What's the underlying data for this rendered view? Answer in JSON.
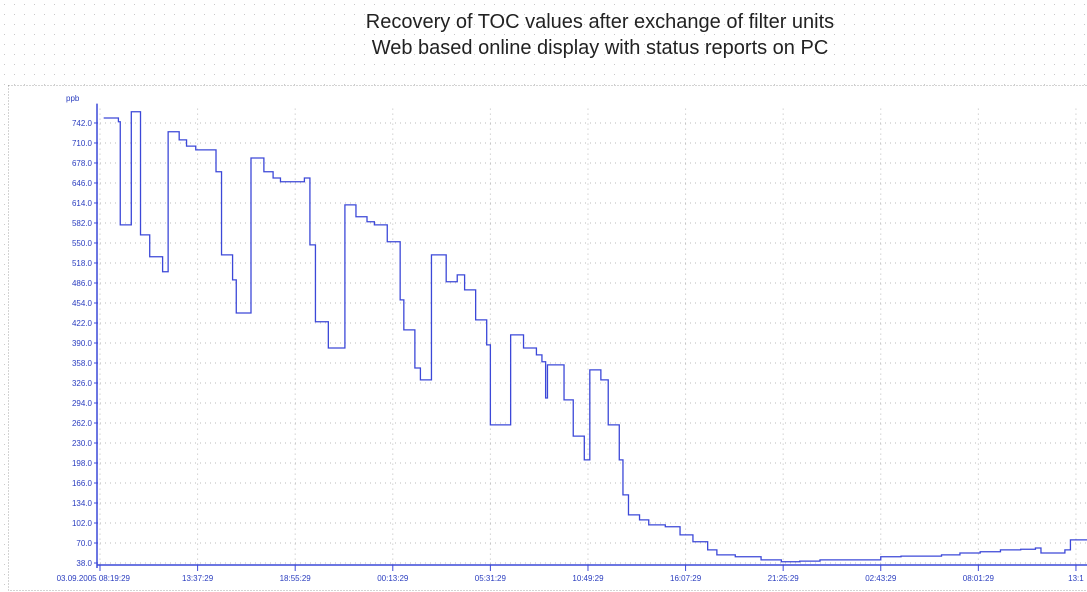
{
  "chart_data": {
    "type": "line",
    "title": "Recovery of TOC values after exchange of filter units",
    "subtitle": "Web based online display with status reports on PC",
    "y_label": "ppb",
    "x": [
      0.2,
      1.0,
      1.1,
      1.7,
      2.2,
      2.7,
      3.4,
      3.7,
      4.3,
      4.7,
      5.2,
      6.3,
      6.6,
      7.2,
      7.4,
      8.2,
      8.9,
      9.4,
      9.8,
      11.1,
      11.4,
      11.7,
      12.4,
      13.3,
      13.9,
      14.5,
      14.9,
      15.6,
      16.3,
      16.5,
      17.1,
      17.4,
      18.0,
      18.8,
      19.4,
      19.8,
      20.4,
      21.0,
      21.2,
      22.3,
      23.0,
      23.7,
      24.0,
      24.2,
      24.3,
      25.2,
      25.7,
      26.3,
      26.6,
      27.2,
      27.6,
      28.2,
      28.4,
      28.7,
      29.3,
      29.8,
      30.7,
      31.5,
      32.2,
      33.0,
      33.5,
      34.5,
      35.9,
      37.0,
      38.0,
      39.1,
      41.3,
      42.4,
      43.5,
      45.7,
      46.7,
      47.8,
      48.9,
      50.0,
      50.8,
      51.1,
      52.4,
      52.7,
      53.6
    ],
    "series": [
      {
        "name": "TOC",
        "color": "#3c48d8",
        "values": [
          750,
          744,
          579,
          760,
          563,
          528,
          504,
          728,
          715,
          705,
          699,
          664,
          531,
          491,
          438,
          686,
          664,
          654,
          648,
          654,
          547,
          424,
          382,
          611,
          592,
          584,
          579,
          552,
          459,
          411,
          350,
          331,
          531,
          488,
          499,
          475,
          427,
          387,
          259,
          403,
          382,
          371,
          360,
          302,
          355,
          299,
          241,
          203,
          347,
          331,
          259,
          203,
          147,
          115,
          107,
          99,
          96,
          83,
          72,
          59,
          51,
          48,
          43,
          40,
          41,
          43,
          43,
          48,
          49,
          51,
          54,
          56,
          59,
          60,
          62,
          54,
          59,
          75,
          75
        ]
      }
    ],
    "xlim": [
      0,
      53.6
    ],
    "ylim": [
      30,
      765
    ],
    "yticks": [
      {
        "value": 38,
        "label": "38.0"
      },
      {
        "value": 70,
        "label": "70.0"
      },
      {
        "value": 102,
        "label": "102.0"
      },
      {
        "value": 134,
        "label": "134.0"
      },
      {
        "value": 166,
        "label": "166.0"
      },
      {
        "value": 198,
        "label": "198.0"
      },
      {
        "value": 230,
        "label": "230.0"
      },
      {
        "value": 262,
        "label": "262.0"
      },
      {
        "value": 294,
        "label": "294.0"
      },
      {
        "value": 326,
        "label": "326.0"
      },
      {
        "value": 358,
        "label": "358.0"
      },
      {
        "value": 390,
        "label": "390.0"
      },
      {
        "value": 422,
        "label": "422.0"
      },
      {
        "value": 454,
        "label": "454.0"
      },
      {
        "value": 486,
        "label": "486.0"
      },
      {
        "value": 518,
        "label": "518.0"
      },
      {
        "value": 550,
        "label": "550.0"
      },
      {
        "value": 582,
        "label": "582.0"
      },
      {
        "value": 614,
        "label": "614.0"
      },
      {
        "value": 646,
        "label": "646.0"
      },
      {
        "value": 678,
        "label": "678.0"
      },
      {
        "value": 710,
        "label": "710.0"
      },
      {
        "value": 742,
        "label": "742.0"
      }
    ],
    "xticks": [
      {
        "value": 0,
        "label": "03.09.2005 08:19:29"
      },
      {
        "value": 5.3,
        "label": "13:37:29"
      },
      {
        "value": 10.6,
        "label": "18:55:29"
      },
      {
        "value": 15.9,
        "label": "00:13:29"
      },
      {
        "value": 21.2,
        "label": "05:31:29"
      },
      {
        "value": 26.5,
        "label": "10:49:29"
      },
      {
        "value": 31.8,
        "label": "16:07:29"
      },
      {
        "value": 37.1,
        "label": "21:25:29"
      },
      {
        "value": 42.4,
        "label": "02:43:29"
      },
      {
        "value": 47.7,
        "label": "08:01:29"
      },
      {
        "value": 53,
        "label": "13:1"
      }
    ],
    "grid": true
  }
}
